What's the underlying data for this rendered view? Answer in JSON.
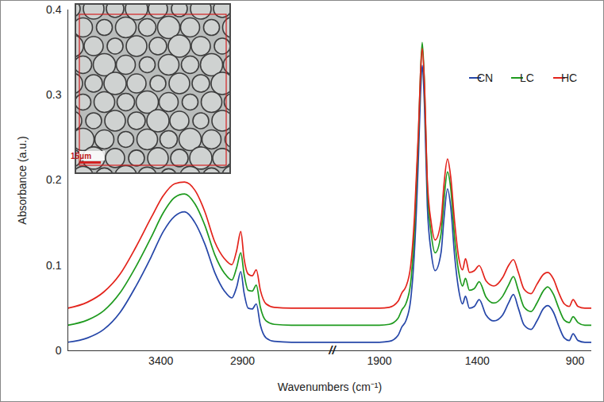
{
  "chart_data": {
    "type": "line",
    "x_label": "Wavenumbers (cm⁻¹)",
    "y_label": "Absorbance (a.u.)",
    "xlim": [
      3970,
      815
    ],
    "xticks": [
      3400,
      2900,
      1900,
      1400,
      900
    ],
    "ylim": [
      0,
      0.4
    ],
    "yticks": [
      0,
      0.1,
      0.2,
      0.3,
      0.4
    ],
    "grid": false,
    "legend": "top-right",
    "x_break": [
      2400,
      2100
    ],
    "break_label": "//",
    "inset": {
      "scale_label": "15μm"
    },
    "x": [
      3970,
      3850,
      3750,
      3650,
      3555,
      3460,
      3385,
      3315,
      3255,
      3190,
      3130,
      3070,
      3010,
      2965,
      2935,
      2910,
      2890,
      2865,
      2840,
      2815,
      2790,
      2755,
      2705,
      2600,
      2400,
      2100,
      1900,
      1850,
      1805,
      1785,
      1765,
      1740,
      1720,
      1700,
      1690,
      1681,
      1670,
      1655,
      1635,
      1615,
      1585,
      1570,
      1552,
      1536,
      1515,
      1495,
      1475,
      1460,
      1440,
      1415,
      1390,
      1355,
      1315,
      1270,
      1240,
      1215,
      1190,
      1160,
      1125,
      1095,
      1060,
      1040,
      1010,
      985,
      955,
      930,
      910,
      885,
      850,
      815
    ],
    "series": [
      {
        "name": "CN",
        "color": "#2546a8",
        "values": [
          0.01,
          0.015,
          0.025,
          0.045,
          0.075,
          0.11,
          0.14,
          0.158,
          0.163,
          0.15,
          0.125,
          0.092,
          0.07,
          0.062,
          0.075,
          0.093,
          0.068,
          0.05,
          0.049,
          0.055,
          0.03,
          0.015,
          0.011,
          0.01,
          0.01,
          0.01,
          0.01,
          0.011,
          0.018,
          0.028,
          0.035,
          0.06,
          0.12,
          0.23,
          0.3,
          0.335,
          0.29,
          0.17,
          0.115,
          0.094,
          0.115,
          0.155,
          0.19,
          0.17,
          0.11,
          0.072,
          0.055,
          0.064,
          0.05,
          0.052,
          0.06,
          0.042,
          0.035,
          0.042,
          0.056,
          0.066,
          0.05,
          0.03,
          0.025,
          0.035,
          0.05,
          0.053,
          0.045,
          0.03,
          0.015,
          0.012,
          0.02,
          0.012,
          0.01,
          0.01
        ]
      },
      {
        "name": "LC",
        "color": "#1e9a1e",
        "values": [
          0.03,
          0.036,
          0.047,
          0.068,
          0.098,
          0.133,
          0.162,
          0.18,
          0.184,
          0.172,
          0.147,
          0.113,
          0.091,
          0.083,
          0.098,
          0.115,
          0.09,
          0.071,
          0.07,
          0.077,
          0.051,
          0.035,
          0.031,
          0.03,
          0.03,
          0.03,
          0.03,
          0.031,
          0.038,
          0.048,
          0.055,
          0.08,
          0.145,
          0.255,
          0.325,
          0.362,
          0.315,
          0.192,
          0.137,
          0.115,
          0.137,
          0.177,
          0.21,
          0.192,
          0.131,
          0.093,
          0.076,
          0.085,
          0.071,
          0.073,
          0.081,
          0.063,
          0.056,
          0.064,
          0.077,
          0.087,
          0.071,
          0.051,
          0.046,
          0.056,
          0.071,
          0.075,
          0.066,
          0.051,
          0.036,
          0.033,
          0.04,
          0.033,
          0.03,
          0.03
        ]
      },
      {
        "name": "HC",
        "color": "#e3231b",
        "values": [
          0.05,
          0.057,
          0.069,
          0.09,
          0.121,
          0.156,
          0.182,
          0.196,
          0.198,
          0.188,
          0.163,
          0.128,
          0.108,
          0.101,
          0.118,
          0.14,
          0.108,
          0.09,
          0.088,
          0.095,
          0.071,
          0.055,
          0.051,
          0.05,
          0.05,
          0.05,
          0.05,
          0.051,
          0.058,
          0.068,
          0.075,
          0.1,
          0.16,
          0.26,
          0.325,
          0.355,
          0.315,
          0.2,
          0.15,
          0.13,
          0.152,
          0.195,
          0.225,
          0.205,
          0.15,
          0.11,
          0.095,
          0.108,
          0.092,
          0.094,
          0.1,
          0.082,
          0.076,
          0.086,
          0.1,
          0.107,
          0.092,
          0.072,
          0.067,
          0.078,
          0.09,
          0.092,
          0.084,
          0.069,
          0.055,
          0.052,
          0.06,
          0.052,
          0.05,
          0.05
        ]
      }
    ]
  }
}
